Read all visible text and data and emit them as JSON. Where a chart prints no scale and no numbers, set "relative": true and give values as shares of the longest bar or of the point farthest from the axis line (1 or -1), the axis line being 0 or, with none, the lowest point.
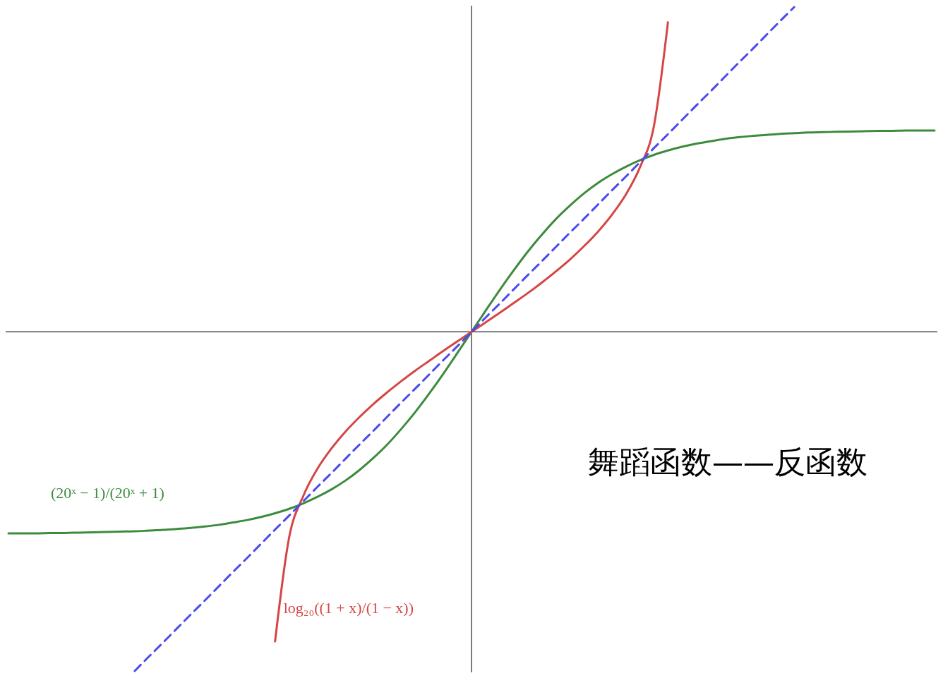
{
  "chart_data": {
    "type": "line",
    "title": "舞蹈函数——反函数",
    "relative": true,
    "categories": [
      null,
      null,
      null,
      null,
      null,
      null,
      null,
      null,
      null,
      null,
      null,
      null,
      null,
      null,
      null,
      null,
      null,
      null,
      null,
      null,
      null,
      null,
      null,
      null,
      null,
      null,
      null,
      null,
      null,
      null,
      null,
      null,
      null,
      null,
      null,
      null,
      null,
      null,
      null,
      null,
      null,
      null,
      null,
      null,
      null,
      null,
      null,
      null,
      null,
      null,
      null,
      null,
      null,
      null,
      null,
      null,
      null,
      null,
      null,
      null,
      null,
      null,
      null,
      null,
      null,
      null,
      null
    ],
    "series": [
      {
        "name": "(20ˣ − 1)/(20ˣ + 1)",
        "color": "#3d8b3d",
        "line_style": "solid",
        "values": [
          -0.594,
          -0.594,
          -0.594,
          -0.593,
          -0.593,
          -0.592,
          -0.591,
          -0.59,
          -0.589,
          -0.588,
          -0.586,
          -0.584,
          -0.581,
          -0.578,
          -0.574,
          -0.569,
          -0.562,
          -0.555,
          -0.546,
          -0.535,
          -0.522,
          -0.506,
          -0.487,
          -0.465,
          -0.439,
          -0.408,
          -0.372,
          -0.332,
          -0.286,
          -0.236,
          -0.181,
          -0.123,
          -0.062,
          0,
          0.062,
          0.123,
          0.181,
          0.236,
          0.286,
          0.332,
          0.372,
          0.408,
          0.439,
          0.465,
          0.487,
          0.506,
          0.522,
          0.535,
          0.546,
          0.555,
          0.562,
          0.569,
          0.574,
          0.578,
          0.581,
          0.584,
          0.586,
          0.588,
          0.589,
          0.59,
          0.591,
          0.592,
          0.593,
          0.593,
          0.594,
          0.594,
          0.594
        ]
      },
      {
        "name": "log₂₀((1 + x)/(1 − x))",
        "color": "#d64545",
        "line_style": "solid",
        "values": [
          null,
          null,
          null,
          null,
          null,
          null,
          null,
          null,
          null,
          null,
          null,
          null,
          null,
          null,
          null,
          null,
          null,
          null,
          null,
          -0.913,
          -0.607,
          -0.485,
          -0.405,
          -0.345,
          -0.295,
          -0.252,
          -0.213,
          -0.178,
          -0.145,
          -0.114,
          -0.085,
          -0.056,
          -0.028,
          0,
          0.028,
          0.056,
          0.085,
          0.114,
          0.145,
          0.178,
          0.213,
          0.252,
          0.295,
          0.345,
          0.405,
          0.485,
          0.607,
          0.913,
          null,
          null,
          null,
          null,
          null,
          null,
          null,
          null,
          null,
          null,
          null,
          null,
          null,
          null,
          null,
          null,
          null,
          null,
          null
        ]
      },
      {
        "color": "#4b4bf0",
        "line_style": "dashed",
        "values": [
          null,
          null,
          null,
          null,
          null,
          null,
          null,
          null,
          null,
          -1,
          -0.958,
          -0.917,
          -0.875,
          -0.833,
          -0.792,
          -0.75,
          -0.708,
          -0.667,
          -0.625,
          -0.583,
          -0.542,
          -0.5,
          -0.458,
          -0.417,
          -0.375,
          -0.333,
          -0.292,
          -0.25,
          -0.208,
          -0.167,
          -0.125,
          -0.083,
          -0.042,
          0,
          0.042,
          0.083,
          0.125,
          0.167,
          0.208,
          0.25,
          0.292,
          0.333,
          0.375,
          0.417,
          0.458,
          0.5,
          0.542,
          0.583,
          0.625,
          0.667,
          0.708,
          0.75,
          0.792,
          0.833,
          0.875,
          0.917,
          0.958,
          null,
          null,
          null,
          null,
          null,
          null,
          null,
          null,
          null,
          null
        ]
      }
    ]
  }
}
